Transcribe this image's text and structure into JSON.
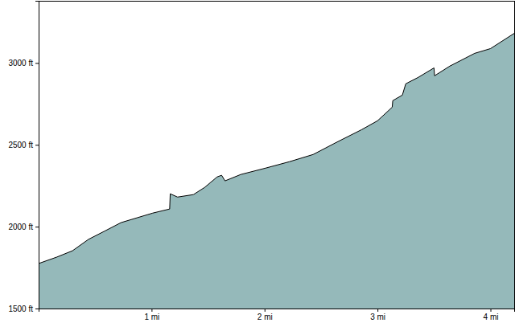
{
  "chart_data": {
    "type": "area",
    "x": [
      0,
      0.16,
      0.3,
      0.44,
      0.59,
      0.73,
      0.87,
      1.01,
      1.16,
      1.165,
      1.23,
      1.37,
      1.47,
      1.58,
      1.62,
      1.65,
      1.79,
      2.01,
      2.22,
      2.43,
      2.65,
      2.86,
      3.0,
      3.13,
      3.135,
      3.22,
      3.25,
      3.36,
      3.5,
      3.505,
      3.64,
      3.86,
      4.0,
      4.21
    ],
    "values": [
      1775,
      1814,
      1853,
      1922,
      1975,
      2025,
      2054,
      2083,
      2108,
      2201,
      2181,
      2196,
      2240,
      2304,
      2314,
      2280,
      2319,
      2358,
      2397,
      2441,
      2520,
      2593,
      2647,
      2730,
      2770,
      2804,
      2873,
      2912,
      2970,
      2922,
      2981,
      3059,
      3088,
      3181
    ],
    "color": "#95b9ba",
    "xlim": [
      0,
      4.21
    ],
    "xticks": [
      {
        "value": 1,
        "label": "1 mi"
      },
      {
        "value": 2,
        "label": "2 mi"
      },
      {
        "value": 3,
        "label": "3 mi"
      },
      {
        "value": 4,
        "label": "4 mi"
      }
    ],
    "ylim": [
      1500,
      3380
    ],
    "yticks": [
      {
        "value": 1500,
        "label": "1500 ft"
      },
      {
        "value": 2000,
        "label": "2000 ft"
      },
      {
        "value": 2500,
        "label": "2500 ft"
      },
      {
        "value": 3000,
        "label": "3000 ft"
      }
    ],
    "grid": false
  }
}
